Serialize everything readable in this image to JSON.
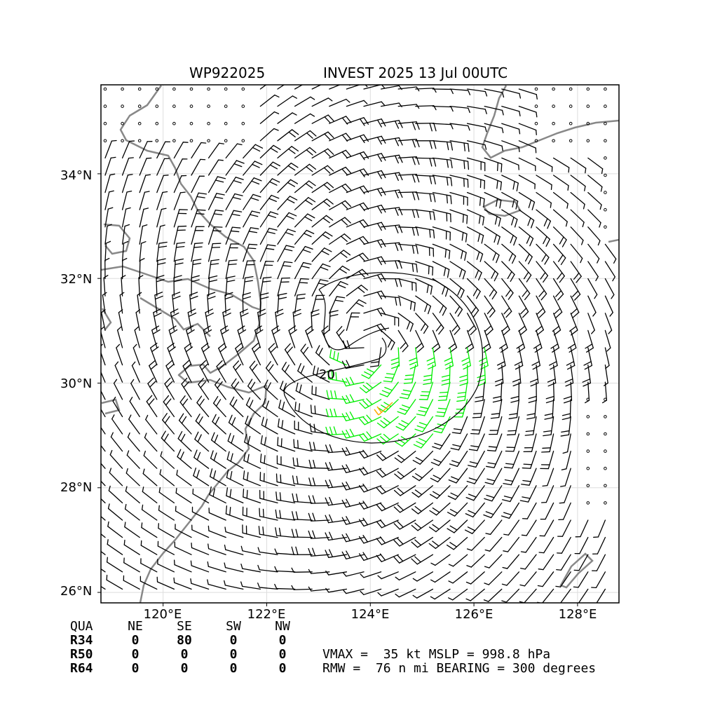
{
  "title": {
    "storm_id": "WP922025",
    "description": "INVEST 2025 13 Jul 00UTC"
  },
  "map": {
    "lon_range": [
      118.8,
      128.8
    ],
    "lat_range": [
      25.8,
      35.7
    ],
    "lat_ticks": [
      "34°N",
      "32°N",
      "30°N",
      "28°N",
      "26°N"
    ],
    "lon_ticks": [
      "120°E",
      "122°E",
      "124°E",
      "126°E",
      "128°E"
    ],
    "center": {
      "lon": 123.9,
      "lat": 30.8
    },
    "contour_label": "20",
    "colors": {
      "coast": "#888888",
      "barb": "#000000",
      "gale": "#00ee00",
      "storm": "#ffaa00",
      "grid": "#dddddd"
    }
  },
  "quadrant_table": {
    "header": [
      "QUA",
      "NE",
      "SE",
      "SW",
      "NW"
    ],
    "rows": [
      {
        "label": "R34",
        "values": [
          "0",
          "80",
          "0",
          "0"
        ]
      },
      {
        "label": "R50",
        "values": [
          "0",
          "0",
          "0",
          "0"
        ]
      },
      {
        "label": "R64",
        "values": [
          "0",
          "0",
          "0",
          "0"
        ]
      }
    ]
  },
  "info": {
    "line1": "VMAX =  35 kt MSLP = 998.8 hPa",
    "line2": "RMW =  76 n mi BEARING = 300 degrees"
  }
}
